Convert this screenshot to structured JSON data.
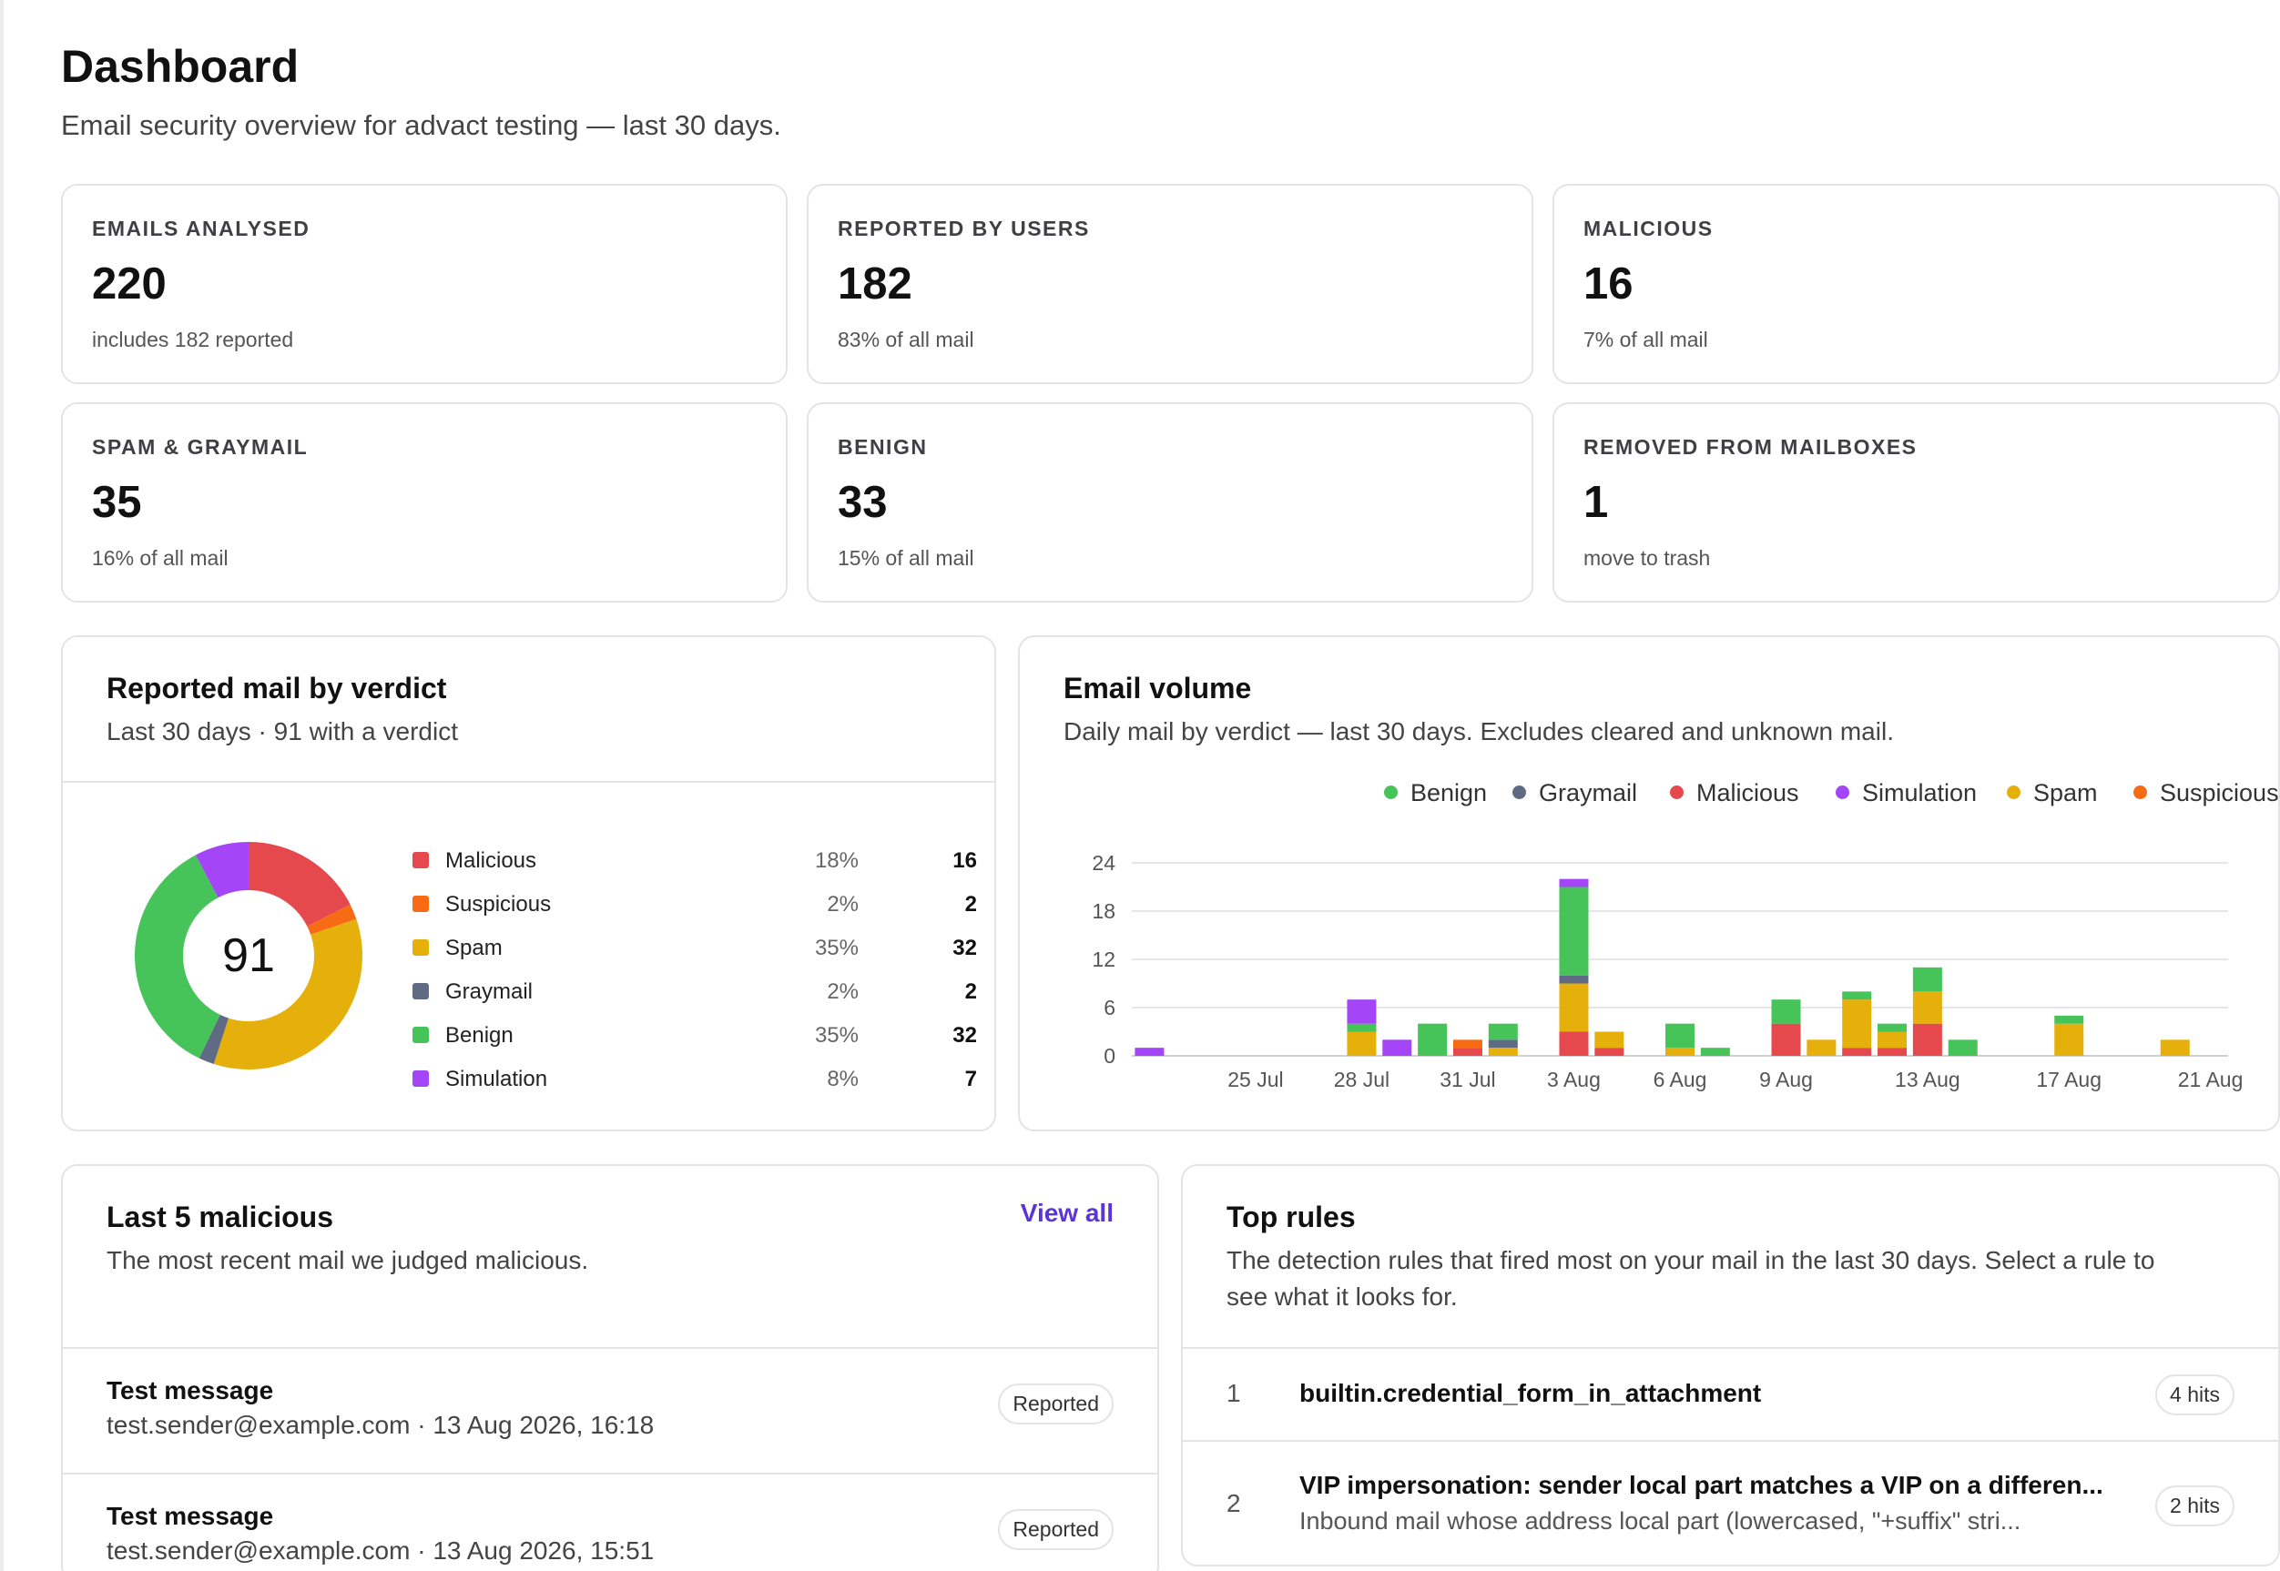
{
  "header": {
    "title": "Dashboard",
    "subtitle": "Email security overview for advact testing — last 30 days."
  },
  "stats": [
    {
      "label": "EMAILS ANALYSED",
      "value": "220",
      "note": "includes 182 reported"
    },
    {
      "label": "REPORTED BY USERS",
      "value": "182",
      "note": "83% of all mail"
    },
    {
      "label": "MALICIOUS",
      "value": "16",
      "note": "7% of all mail"
    },
    {
      "label": "SPAM & GRAYMAIL",
      "value": "35",
      "note": "16% of all mail"
    },
    {
      "label": "BENIGN",
      "value": "33",
      "note": "15% of all mail"
    },
    {
      "label": "REMOVED FROM MAILBOXES",
      "value": "1",
      "note": "move to trash"
    }
  ],
  "verdict_panel": {
    "title": "Reported mail by verdict",
    "subtitle": "Last 30 days · 91 with a verdict",
    "total": "91",
    "items": [
      {
        "name": "Malicious",
        "percent": "18%",
        "count": "16",
        "color": "#e5484d"
      },
      {
        "name": "Suspicious",
        "percent": "2%",
        "count": "2",
        "color": "#f76b15"
      },
      {
        "name": "Spam",
        "percent": "35%",
        "count": "32",
        "color": "#e5b00b"
      },
      {
        "name": "Graymail",
        "percent": "2%",
        "count": "2",
        "color": "#5f6b85"
      },
      {
        "name": "Benign",
        "percent": "35%",
        "count": "32",
        "color": "#46c45a"
      },
      {
        "name": "Simulation",
        "percent": "8%",
        "count": "7",
        "color": "#a445f7"
      }
    ]
  },
  "volume_panel": {
    "title": "Email volume",
    "subtitle": "Daily mail by verdict — last 30 days. Excludes cleared and unknown mail.",
    "legend": [
      {
        "name": "Benign",
        "color": "#46c45a"
      },
      {
        "name": "Graymail",
        "color": "#5f6b85"
      },
      {
        "name": "Malicious",
        "color": "#e5484d"
      },
      {
        "name": "Simulation",
        "color": "#a445f7"
      },
      {
        "name": "Spam",
        "color": "#e5b00b"
      },
      {
        "name": "Suspicious",
        "color": "#f76b15"
      }
    ]
  },
  "chart_data": {
    "type": "bar",
    "stacked": true,
    "x": [
      "22 Jul",
      "23 Jul",
      "24 Jul",
      "25 Jul",
      "26 Jul",
      "27 Jul",
      "28 Jul",
      "29 Jul",
      "30 Jul",
      "31 Jul",
      "1 Aug",
      "2 Aug",
      "3 Aug",
      "4 Aug",
      "5 Aug",
      "6 Aug",
      "7 Aug",
      "8 Aug",
      "9 Aug",
      "10 Aug",
      "11 Aug",
      "12 Aug",
      "13 Aug",
      "14 Aug",
      "15 Aug",
      "16 Aug",
      "17 Aug",
      "18 Aug",
      "19 Aug",
      "20 Aug",
      "21 Aug"
    ],
    "x_tick_labels": [
      "25 Jul",
      "28 Jul",
      "31 Jul",
      "3 Aug",
      "6 Aug",
      "9 Aug",
      "13 Aug",
      "17 Aug",
      "21 Aug"
    ],
    "y_ticks": [
      0,
      6,
      12,
      18,
      24
    ],
    "ylim": [
      0,
      24
    ],
    "grid": true,
    "legend_position": "top",
    "series": [
      {
        "name": "Malicious",
        "color": "#e5484d",
        "values": [
          0,
          0,
          0,
          0,
          0,
          0,
          0,
          0,
          0,
          1,
          0,
          0,
          3,
          1,
          0,
          0,
          0,
          0,
          4,
          0,
          1,
          1,
          4,
          0,
          0,
          0,
          0,
          0,
          0,
          0,
          0
        ]
      },
      {
        "name": "Suspicious",
        "color": "#f76b15",
        "values": [
          0,
          0,
          0,
          0,
          0,
          0,
          0,
          0,
          0,
          1,
          0,
          0,
          0,
          0,
          0,
          0,
          0,
          0,
          0,
          0,
          0,
          0,
          0,
          0,
          0,
          0,
          0,
          0,
          0,
          0,
          0
        ]
      },
      {
        "name": "Spam",
        "color": "#e5b00b",
        "values": [
          0,
          0,
          0,
          0,
          0,
          0,
          3,
          0,
          0,
          0,
          1,
          0,
          6,
          2,
          0,
          1,
          0,
          0,
          0,
          2,
          6,
          2,
          4,
          0,
          0,
          0,
          4,
          0,
          0,
          2,
          0
        ]
      },
      {
        "name": "Graymail",
        "color": "#5f6b85",
        "values": [
          0,
          0,
          0,
          0,
          0,
          0,
          0,
          0,
          0,
          0,
          1,
          0,
          1,
          0,
          0,
          0,
          0,
          0,
          0,
          0,
          0,
          0,
          0,
          0,
          0,
          0,
          0,
          0,
          0,
          0,
          0
        ]
      },
      {
        "name": "Benign",
        "color": "#46c45a",
        "values": [
          0,
          0,
          0,
          0,
          0,
          0,
          1,
          0,
          4,
          0,
          2,
          0,
          11,
          0,
          0,
          3,
          1,
          0,
          3,
          0,
          1,
          1,
          3,
          2,
          0,
          0,
          1,
          0,
          0,
          0,
          0
        ]
      },
      {
        "name": "Simulation",
        "color": "#a445f7",
        "values": [
          1,
          0,
          0,
          0,
          0,
          0,
          3,
          2,
          0,
          0,
          0,
          0,
          1,
          0,
          0,
          0,
          0,
          0,
          0,
          0,
          0,
          0,
          0,
          0,
          0,
          0,
          0,
          0,
          0,
          0,
          0
        ]
      }
    ]
  },
  "malicious_panel": {
    "title": "Last 5 malicious",
    "subtitle": "The most recent mail we judged malicious.",
    "view_all": "View all",
    "items": [
      {
        "subject": "Test message",
        "meta": "test.sender@example.com · 13 Aug 2026, 16:18",
        "badge": "Reported"
      },
      {
        "subject": "Test message",
        "meta": "test.sender@example.com · 13 Aug 2026, 15:51",
        "badge": "Reported"
      }
    ]
  },
  "rules_panel": {
    "title": "Top rules",
    "subtitle_line1": "The detection rules that fired most on your mail in the last 30 days. Select a rule to",
    "subtitle_line2": "see what it looks for.",
    "rules": [
      {
        "rank": "1",
        "name": "builtin.credential_form_in_attachment",
        "description": "",
        "hits": "4 hits"
      },
      {
        "rank": "2",
        "name": "VIP impersonation: sender local part matches a VIP on a differen...",
        "description": "Inbound mail whose address local part (lowercased, \"+suffix\" stri...",
        "hits": "2 hits"
      }
    ]
  }
}
